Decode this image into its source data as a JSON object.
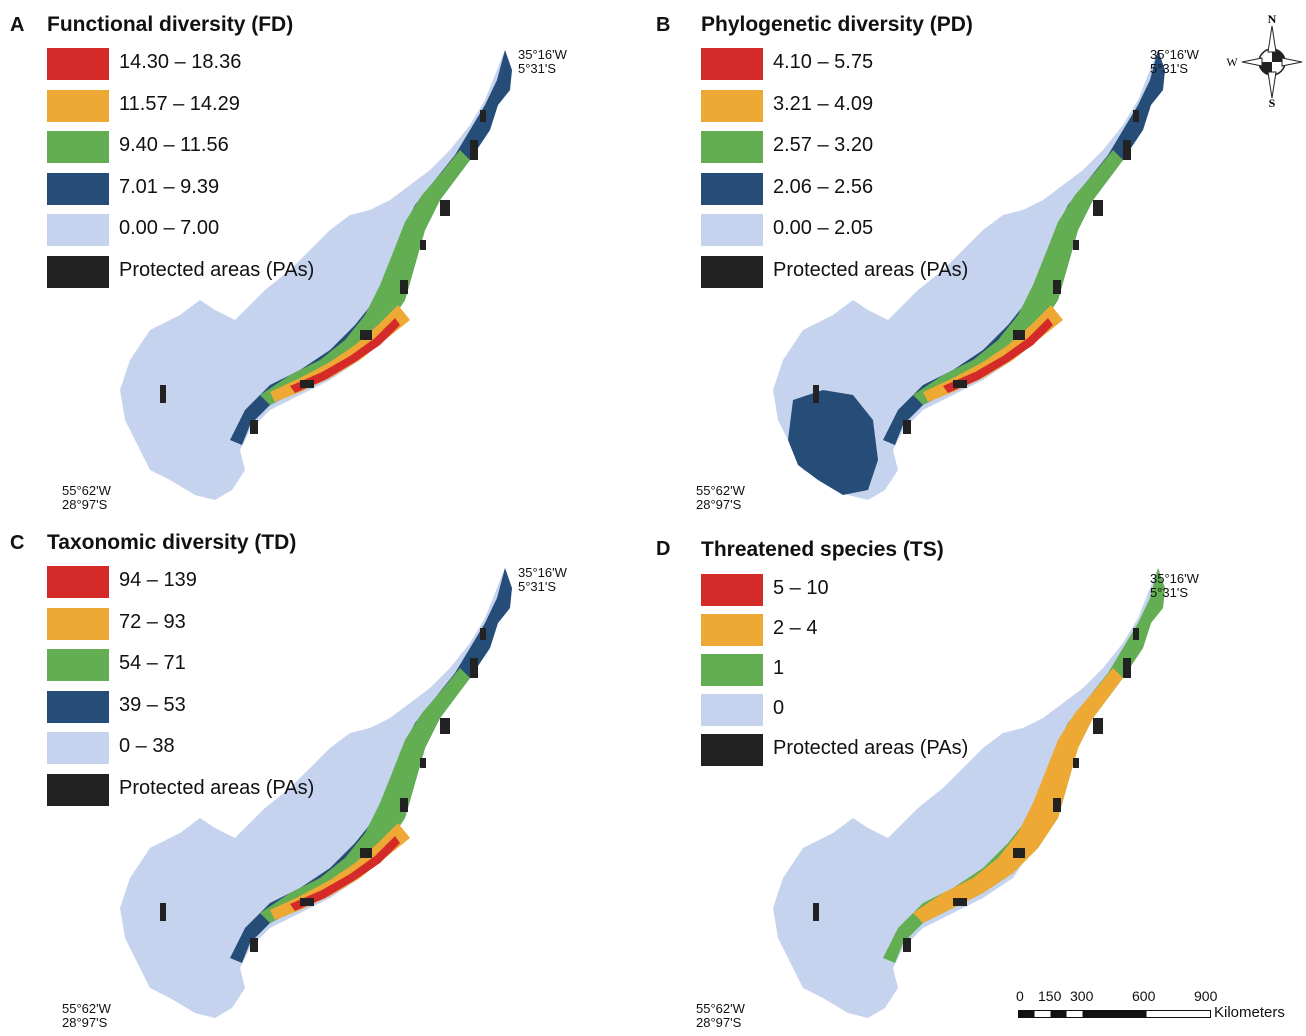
{
  "colors": {
    "c1": "#d42a2a",
    "c2": "#eda934",
    "c3": "#63ad52",
    "c4": "#264d78",
    "c5": "#c6d3ee",
    "pa": "#222222"
  },
  "compass": {
    "n": "N",
    "s": "S",
    "w": "W"
  },
  "scalebar": {
    "ticks": [
      "0",
      "150",
      "300",
      "600",
      "900"
    ],
    "unit": "Kilometers"
  },
  "panels": [
    {
      "letter": "A",
      "title": "Functional diversity (FD)",
      "ne_lon": "35°16'W",
      "ne_lat": "5°31'S",
      "sw_lon": "55°62'W",
      "sw_lat": "28°97'S",
      "legend": [
        {
          "label": "14.30 – 18.36",
          "color": "#d42a2a"
        },
        {
          "label": "11.57 – 14.29",
          "color": "#eda934"
        },
        {
          "label": "9.40 – 11.56",
          "color": "#63ad52"
        },
        {
          "label": "7.01 – 9.39",
          "color": "#264d78"
        },
        {
          "label": "0.00 – 7.00",
          "color": "#c6d3ee"
        },
        {
          "label": "Protected areas (PAs)",
          "color": "#222222"
        }
      ]
    },
    {
      "letter": "B",
      "title": "Phylogenetic diversity (PD)",
      "ne_lon": "35°16'W",
      "ne_lat": "5°31'S",
      "sw_lon": "55°62'W",
      "sw_lat": "28°97'S",
      "legend": [
        {
          "label": "4.10 – 5.75",
          "color": "#d42a2a"
        },
        {
          "label": "3.21 – 4.09",
          "color": "#eda934"
        },
        {
          "label": "2.57 – 3.20",
          "color": "#63ad52"
        },
        {
          "label": "2.06 – 2.56",
          "color": "#264d78"
        },
        {
          "label": "0.00 – 2.05",
          "color": "#c6d3ee"
        },
        {
          "label": "Protected areas (PAs)",
          "color": "#222222"
        }
      ]
    },
    {
      "letter": "C",
      "title": "Taxonomic diversity (TD)",
      "ne_lon": "35°16'W",
      "ne_lat": "5°31'S",
      "sw_lon": "55°62'W",
      "sw_lat": "28°97'S",
      "legend": [
        {
          "label": "94 – 139",
          "color": "#d42a2a"
        },
        {
          "label": "72 – 93",
          "color": "#eda934"
        },
        {
          "label": "54 – 71",
          "color": "#63ad52"
        },
        {
          "label": "39 – 53",
          "color": "#264d78"
        },
        {
          "label": "0 – 38",
          "color": "#c6d3ee"
        },
        {
          "label": "Protected areas (PAs)",
          "color": "#222222"
        }
      ]
    },
    {
      "letter": "D",
      "title": "Threatened species (TS)",
      "ne_lon": "35°16'W",
      "ne_lat": "5°31'S",
      "sw_lon": "55°62'W",
      "sw_lat": "28°97'S",
      "legend": [
        {
          "label": "5 – 10",
          "color": "#d42a2a"
        },
        {
          "label": "2 – 4",
          "color": "#eda934"
        },
        {
          "label": "1",
          "color": "#63ad52"
        },
        {
          "label": "0",
          "color": "#c6d3ee"
        },
        {
          "label": "Protected areas (PAs)",
          "color": "#222222"
        }
      ]
    }
  ]
}
